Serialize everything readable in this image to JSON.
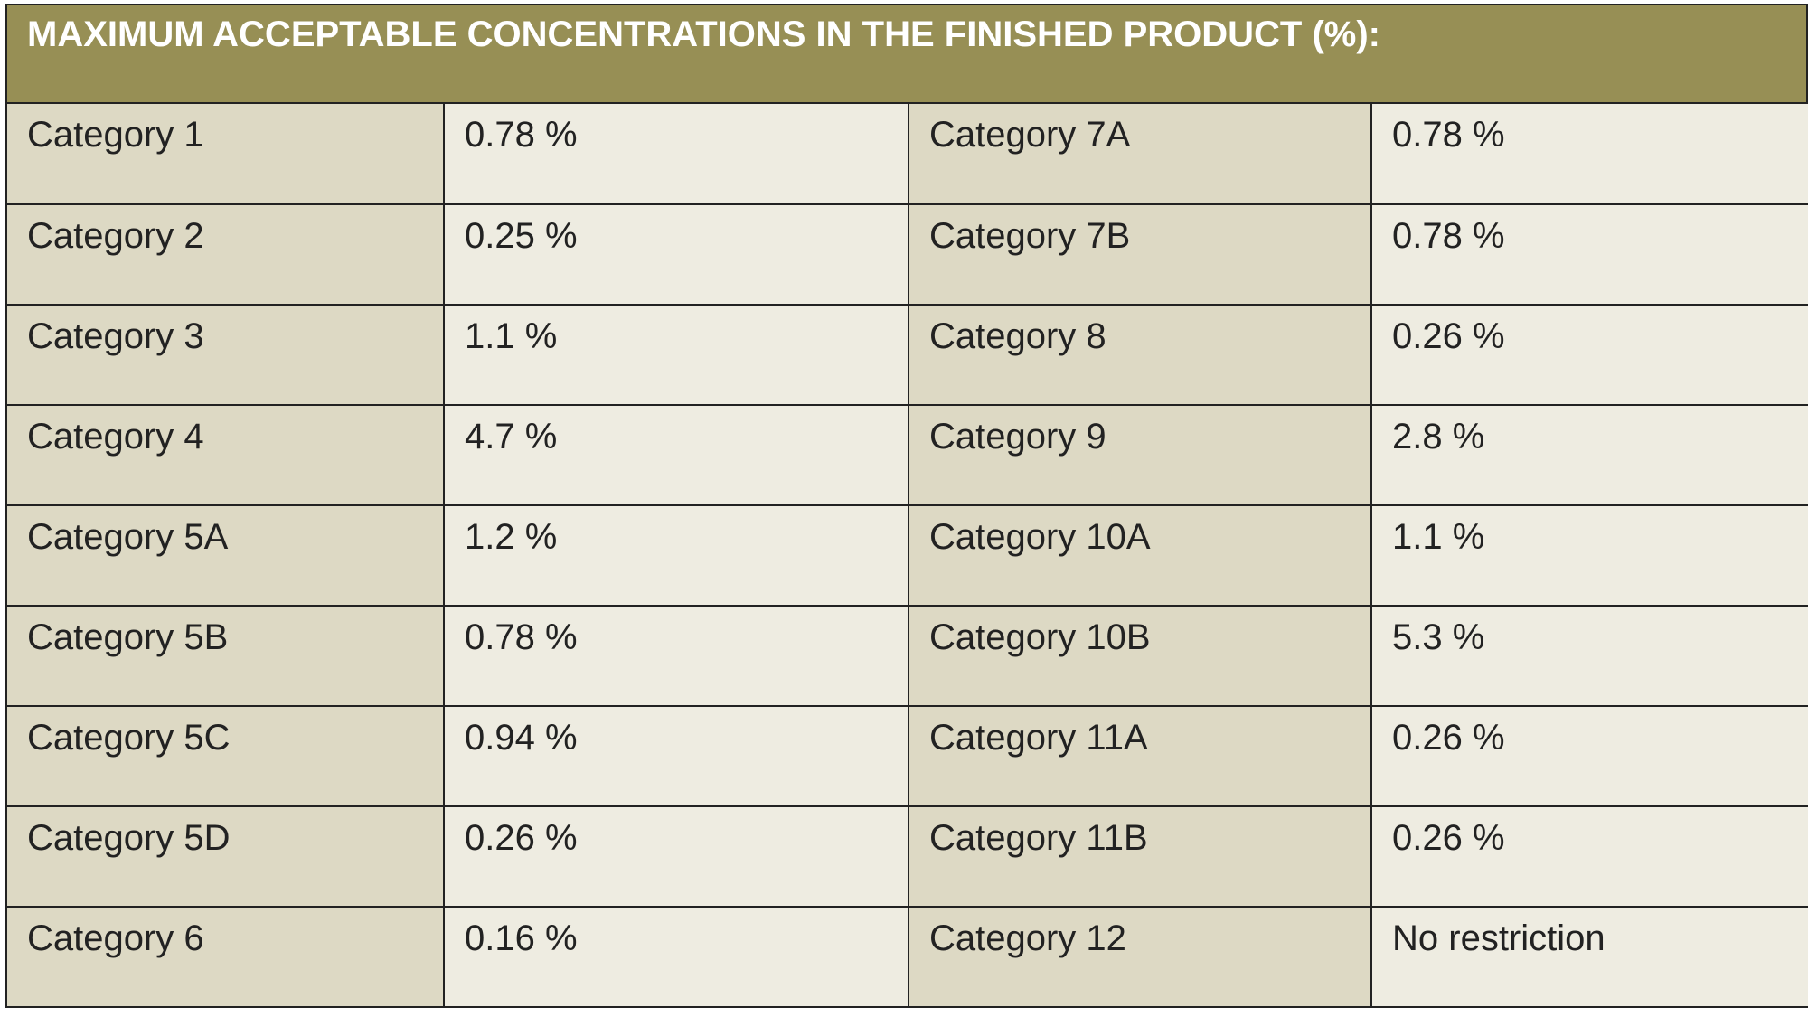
{
  "title": "MAXIMUM ACCEPTABLE CONCENTRATIONS IN THE FINISHED PRODUCT (%):",
  "rows": [
    {
      "cat_left": "Category 1",
      "val_left": "0.78 %",
      "cat_right": "Category 7A",
      "val_right": "0.78 %"
    },
    {
      "cat_left": "Category 2",
      "val_left": "0.25 %",
      "cat_right": "Category 7B",
      "val_right": "0.78 %"
    },
    {
      "cat_left": "Category 3",
      "val_left": "1.1 %",
      "cat_right": "Category 8",
      "val_right": "0.26 %"
    },
    {
      "cat_left": "Category 4",
      "val_left": "4.7 %",
      "cat_right": "Category 9",
      "val_right": "2.8 %"
    },
    {
      "cat_left": "Category 5A",
      "val_left": "1.2 %",
      "cat_right": "Category 10A",
      "val_right": "1.1 %"
    },
    {
      "cat_left": "Category 5B",
      "val_left": "0.78 %",
      "cat_right": "Category 10B",
      "val_right": "5.3 %"
    },
    {
      "cat_left": "Category 5C",
      "val_left": "0.94 %",
      "cat_right": "Category 11A",
      "val_right": "0.26 %"
    },
    {
      "cat_left": "Category 5D",
      "val_left": "0.26 %",
      "cat_right": "Category 11B",
      "val_right": "0.26 %"
    },
    {
      "cat_left": "Category 6",
      "val_left": "0.16 %",
      "cat_right": "Category 12",
      "val_right": "No restriction"
    }
  ],
  "colors": {
    "header_bg": "#978f55",
    "category_cell_bg": "#ddd9c4",
    "value_cell_bg": "#eeece1",
    "border": "#222222"
  }
}
